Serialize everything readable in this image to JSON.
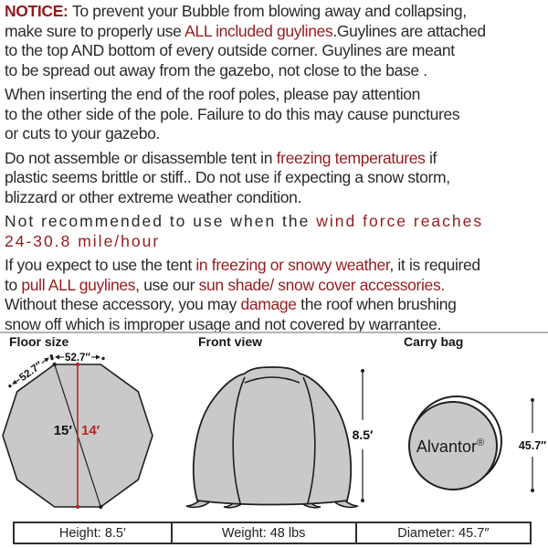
{
  "doc": {
    "paragraphs": [
      {
        "cls": "",
        "lines": [
          [
            {
              "t": "NOTICE: ",
              "red": true,
              "bold": true
            },
            {
              "t": "To prevent your Bubble from blowing away and collapsing,"
            }
          ],
          [
            {
              "t": "make sure to properly use "
            },
            {
              "t": "ALL included guylines",
              "red": true
            },
            {
              "t": ".Guylines are attached"
            }
          ],
          [
            {
              "t": "to the top AND bottom of every outside corner. Guylines are meant"
            }
          ],
          [
            {
              "t": "to be spread out away from the gazebo, not close to the base ."
            }
          ]
        ]
      },
      {
        "cls": "",
        "lines": [
          [
            {
              "t": "When inserting the end of the roof poles, please pay attention"
            }
          ],
          [
            {
              "t": "to the other side of the pole. Failure to do this may cause punctures"
            }
          ],
          [
            {
              "t": "or cuts to your gazebo."
            }
          ]
        ]
      },
      {
        "cls": "",
        "lines": [
          [
            {
              "t": "Do not assemble or disassemble tent in "
            },
            {
              "t": "freezing temperatures",
              "red": true
            },
            {
              "t": " if"
            }
          ],
          [
            {
              "t": "plastic seems brittle or stiff.. Do not use if expecting a snow storm,"
            }
          ],
          [
            {
              "t": "blizzard or other extreme weather condition."
            }
          ]
        ]
      },
      {
        "cls": "wide",
        "lines": [
          [
            {
              "t": "Not recommended to use when the "
            },
            {
              "t": "wind force reaches",
              "red": true
            }
          ],
          [
            {
              "t": "24-30.8 mile/hour",
              "red": true
            }
          ]
        ]
      },
      {
        "cls": "",
        "lines": [
          [
            {
              "t": "If you expect to use the tent "
            },
            {
              "t": "in freezing or snowy weather",
              "red": true
            },
            {
              "t": ", it is required"
            }
          ],
          [
            {
              "t": "to "
            },
            {
              "t": "pull ALL guylines",
              "red": true
            },
            {
              "t": ", use our "
            },
            {
              "t": "sun shade/ snow cover accessories.",
              "red": true
            }
          ],
          [
            {
              "t": "Without these accessory,  you may "
            },
            {
              "t": "damage",
              "red": true
            },
            {
              "t": " the roof when brushing"
            }
          ],
          [
            {
              "t": "snow off which is improper usage and not covered by warrantee."
            }
          ]
        ]
      }
    ]
  },
  "diagrams": {
    "floor": {
      "title": "Floor size",
      "side_top": "52.7″",
      "side_diag": "52.7″",
      "diagonal": "15′",
      "across": "14′"
    },
    "front": {
      "title": "Front view",
      "height": "8.5′"
    },
    "bag": {
      "title": "Carry bag",
      "brand": "Alvantor",
      "reg": "®",
      "diameter": "45.7″"
    }
  },
  "specs": [
    "Height: 8.5′",
    "Weight: 48 lbs",
    "Diameter: 45.7″"
  ],
  "colors": {
    "accent_red": "#961b1e",
    "diagram_red": "#b3282d",
    "diagram_fill": "#c9c9c9",
    "line": "#1f1f1f"
  }
}
